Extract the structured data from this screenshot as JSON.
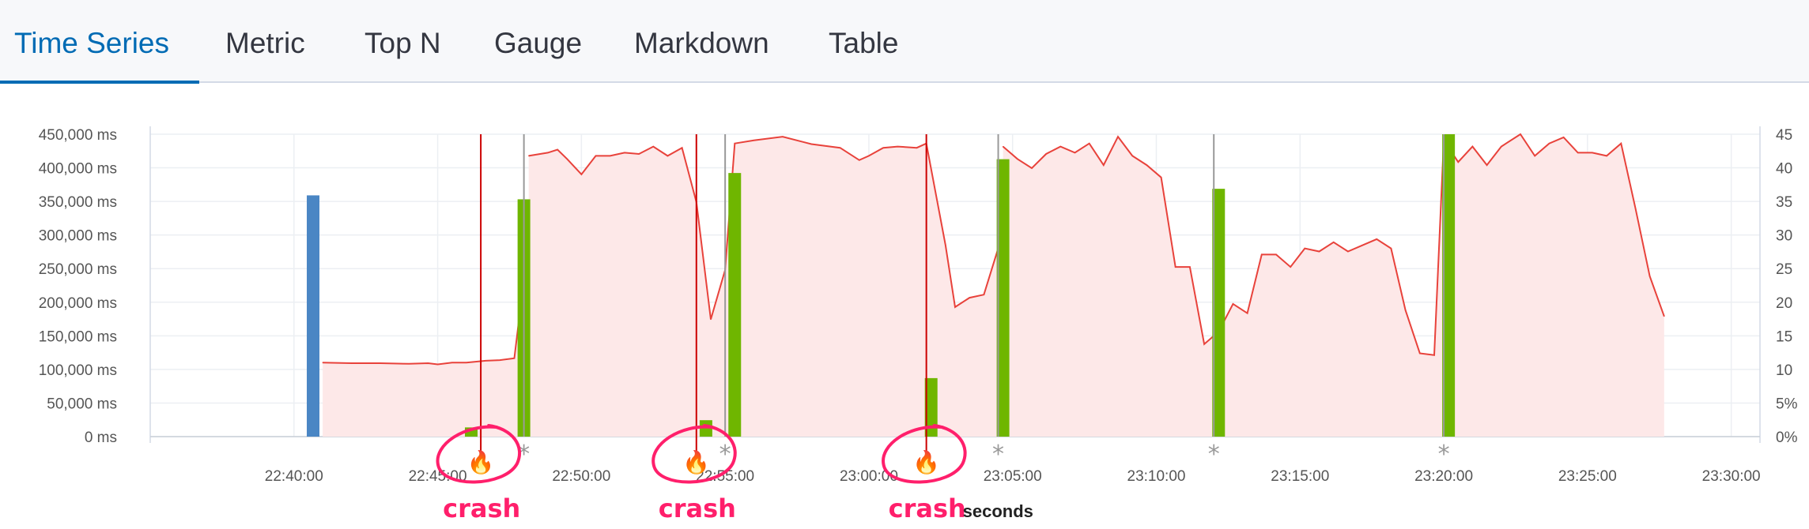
{
  "tabs": [
    {
      "label": "Time Series",
      "active": true
    },
    {
      "label": "Metric",
      "active": false
    },
    {
      "label": "Top N",
      "active": false
    },
    {
      "label": "Gauge",
      "active": false
    },
    {
      "label": "Markdown",
      "active": false
    },
    {
      "label": "Table",
      "active": false
    }
  ],
  "colors": {
    "accent": "#006bb4",
    "bar_blue": "#4a86c4",
    "bar_green": "#6fb600",
    "line_red": "#e8423b",
    "area_fill": "#fde8e8",
    "crash_line": "#cc0000",
    "annotation": "#ff1f6b",
    "deploy_line": "#999999"
  },
  "annotations": {
    "crash_label": "crash",
    "x_title": "seconds",
    "deploy_marker": "*",
    "crash_icon": "flame-icon"
  },
  "chart_data": {
    "type": "bar",
    "x_axis": {
      "ticks": [
        "22:40:00",
        "22:45:00",
        "22:50:00",
        "22:55:00",
        "23:00:00",
        "23:05:00",
        "23:10:00",
        "23:15:00",
        "23:20:00",
        "23:25:00",
        "23:30:00"
      ],
      "range": [
        "22:35:00",
        "23:31:00"
      ]
    },
    "y_left": {
      "ticks": [
        "0 ms",
        "50,000 ms",
        "100,000 ms",
        "150,000 ms",
        "200,000 ms",
        "250,000 ms",
        "300,000 ms",
        "350,000 ms",
        "400,000 ms",
        "450,000 ms"
      ],
      "range": [
        0,
        460000
      ]
    },
    "y_right": {
      "ticks": [
        "0%",
        "5%",
        "10",
        "15",
        "20",
        "25",
        "30",
        "35",
        "40",
        "45"
      ],
      "range": [
        0,
        49
      ]
    },
    "grid": true,
    "series": [
      {
        "type": "bar",
        "color": "blue",
        "points": [
          {
            "x": "22:40:40",
            "y": 367000
          }
        ]
      },
      {
        "type": "bar",
        "color": "green",
        "points": [
          {
            "x": "22:46:10",
            "y": 14000
          },
          {
            "x": "22:48:00",
            "y": 361000
          },
          {
            "x": "22:54:20",
            "y": 25000
          },
          {
            "x": "22:55:20",
            "y": 401000
          },
          {
            "x": "23:02:10",
            "y": 89000
          },
          {
            "x": "23:04:40",
            "y": 422000
          },
          {
            "x": "23:12:10",
            "y": 377000
          },
          {
            "x": "23:20:10",
            "y": 460000
          }
        ]
      },
      {
        "type": "area",
        "segments": [
          {
            "points": [
              [
                "22:41:00",
                12
              ],
              [
                "22:42:00",
                11.9
              ],
              [
                "22:43:00",
                11.9
              ],
              [
                "22:44:00",
                11.8
              ],
              [
                "22:44:40",
                11.9
              ],
              [
                "22:45:00",
                11.7
              ],
              [
                "22:45:30",
                12.0
              ],
              [
                "22:46:00",
                12.0
              ],
              [
                "22:46:40",
                12.3
              ],
              [
                "22:47:10",
                12.4
              ],
              [
                "22:47:40",
                12.7
              ],
              [
                "22:48:00",
                25.5
              ]
            ]
          },
          {
            "points": [
              [
                "22:48:10",
                45.5
              ],
              [
                "22:48:50",
                46.0
              ],
              [
                "22:49:10",
                46.5
              ],
              [
                "22:49:30",
                45.0
              ],
              [
                "22:50:00",
                42.5
              ],
              [
                "22:50:30",
                45.5
              ],
              [
                "22:51:00",
                45.5
              ],
              [
                "22:51:30",
                46.0
              ],
              [
                "22:52:00",
                45.8
              ],
              [
                "22:52:30",
                47.0
              ],
              [
                "22:53:00",
                45.5
              ],
              [
                "22:53:30",
                46.8
              ],
              [
                "22:54:00",
                38.0
              ],
              [
                "22:54:30",
                19.0
              ],
              [
                "22:55:00",
                27.0
              ],
              [
                "22:55:20",
                47.5
              ],
              [
                "22:56:00",
                48.0
              ],
              [
                "22:57:00",
                48.6
              ],
              [
                "22:58:00",
                47.4
              ],
              [
                "22:59:00",
                46.8
              ],
              [
                "22:59:40",
                44.8
              ],
              [
                "23:00:00",
                45.5
              ],
              [
                "23:00:30",
                46.8
              ],
              [
                "23:01:00",
                47.0
              ],
              [
                "23:01:40",
                46.8
              ],
              [
                "23:02:00",
                47.5
              ],
              [
                "23:02:40",
                31.0
              ],
              [
                "23:03:00",
                21.0
              ],
              [
                "23:03:30",
                22.5
              ],
              [
                "23:04:00",
                23.0
              ],
              [
                "23:04:30",
                30.5
              ]
            ]
          },
          {
            "points": [
              [
                "23:04:40",
                47.0
              ],
              [
                "23:05:10",
                45.0
              ],
              [
                "23:05:40",
                43.5
              ],
              [
                "23:06:10",
                45.8
              ],
              [
                "23:06:40",
                47.0
              ],
              [
                "23:07:10",
                46.0
              ],
              [
                "23:07:40",
                47.5
              ],
              [
                "23:08:10",
                44.0
              ],
              [
                "23:08:40",
                48.6
              ],
              [
                "23:09:10",
                45.5
              ],
              [
                "23:09:40",
                44.0
              ],
              [
                "23:10:10",
                42.0
              ],
              [
                "23:10:40",
                27.5
              ],
              [
                "23:11:10",
                27.5
              ],
              [
                "23:11:40",
                15.0
              ],
              [
                "23:12:10",
                17.0
              ],
              [
                "23:12:40",
                21.5
              ],
              [
                "23:13:10",
                20.0
              ],
              [
                "23:13:40",
                29.5
              ],
              [
                "23:14:10",
                29.5
              ],
              [
                "23:14:40",
                27.5
              ],
              [
                "23:15:10",
                30.5
              ],
              [
                "23:15:40",
                30.0
              ],
              [
                "23:16:10",
                31.5
              ],
              [
                "23:16:40",
                30.0
              ],
              [
                "23:17:10",
                31.0
              ],
              [
                "23:17:40",
                32.0
              ],
              [
                "23:18:10",
                30.5
              ],
              [
                "23:18:40",
                20.5
              ],
              [
                "23:19:10",
                13.5
              ],
              [
                "23:19:40",
                13.2
              ],
              [
                "23:20:00",
                48.0
              ],
              [
                "23:20:30",
                44.5
              ],
              [
                "23:21:00",
                47.0
              ],
              [
                "23:21:30",
                44.0
              ],
              [
                "23:22:00",
                47.0
              ],
              [
                "23:22:40",
                49.0
              ],
              [
                "23:23:10",
                45.5
              ],
              [
                "23:23:40",
                47.5
              ],
              [
                "23:24:10",
                48.5
              ],
              [
                "23:24:40",
                46.0
              ],
              [
                "23:25:10",
                46.0
              ],
              [
                "23:25:40",
                45.5
              ],
              [
                "23:26:10",
                47.5
              ],
              [
                "23:26:40",
                37.0
              ],
              [
                "23:27:10",
                26.0
              ],
              [
                "23:27:40",
                19.5
              ]
            ]
          }
        ]
      }
    ],
    "events": {
      "crashes": [
        "22:46:30",
        "22:54:00",
        "23:02:00"
      ],
      "deploys": [
        "22:48:00",
        "22:55:00",
        "23:04:30",
        "23:12:00",
        "23:20:00"
      ]
    }
  }
}
